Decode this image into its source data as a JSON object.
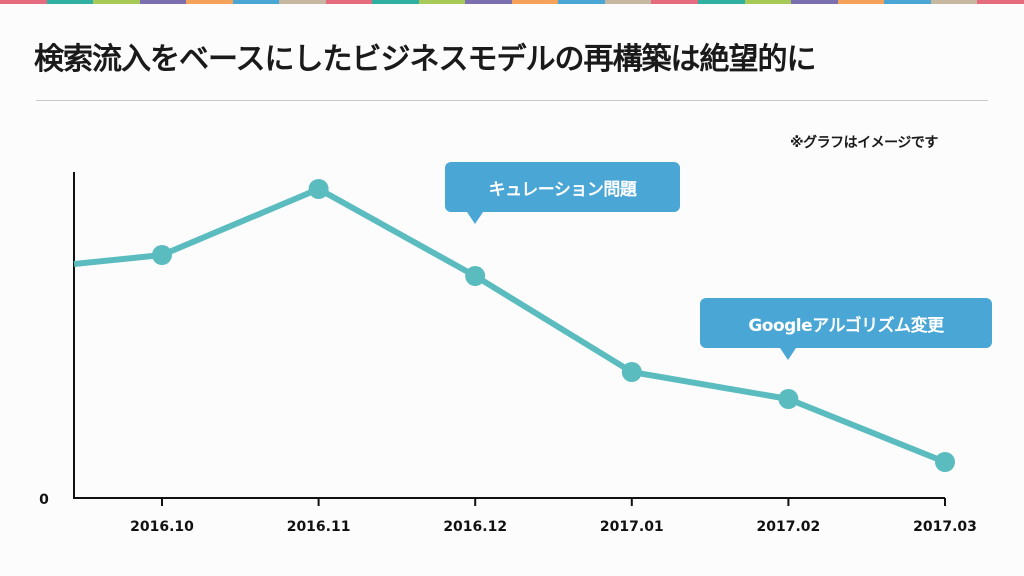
{
  "title": "検索流入をベースにしたビジネスモデルの再構築は絶望的に",
  "note": "※グラフはイメージです",
  "strip_colors": [
    "#e56b7f",
    "#2fb0a0",
    "#a7c957",
    "#7b6fb0",
    "#f4a259",
    "#4aa6d5",
    "#c6b8a0"
  ],
  "colors": {
    "line": "#5bbcbf",
    "callout": "#4aa6d5"
  },
  "callouts": [
    {
      "text": "キュレーション問題"
    },
    {
      "text": "Googleアルゴリズム変更"
    }
  ],
  "chart_data": {
    "type": "line",
    "categories": [
      "2016.10",
      "2016.11",
      "2016.12",
      "2017.01",
      "2017.02",
      "2017.03"
    ],
    "x": [
      0.55,
      1,
      2,
      3,
      4,
      5,
      6
    ],
    "values": [
      78,
      81,
      103,
      74,
      42,
      33,
      12
    ],
    "ylim": [
      0,
      110
    ],
    "y_tick_labels": [
      "0"
    ],
    "grid": false,
    "legend": "none",
    "note": "※グラフはイメージです"
  }
}
